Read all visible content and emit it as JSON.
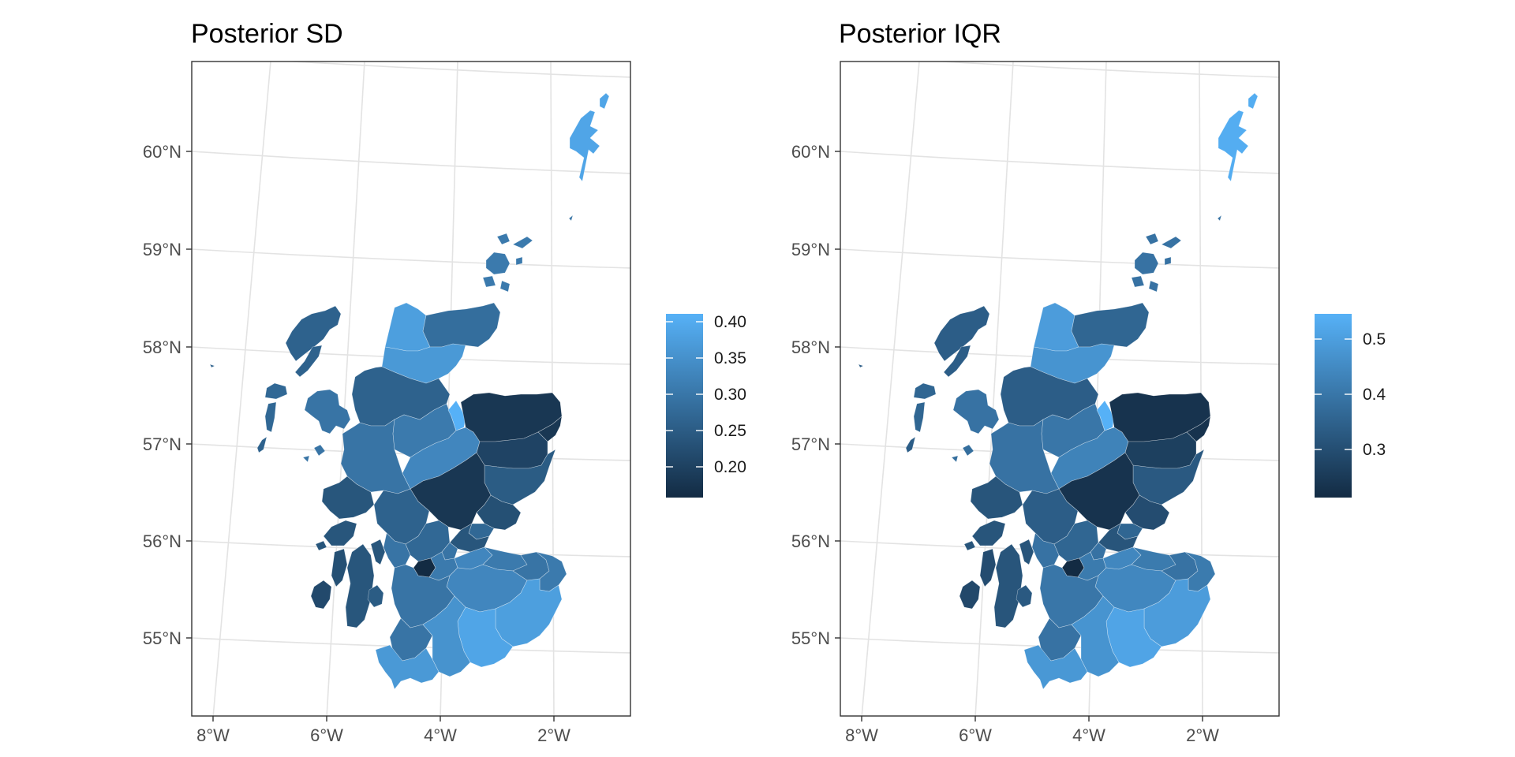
{
  "maps": [
    {
      "title": "Posterior SD",
      "x_ticks": [
        "8°W",
        "6°W",
        "4°W",
        "2°W"
      ],
      "y_ticks": [
        "60°N",
        "59°N",
        "58°N",
        "57°N",
        "56°N",
        "55°N"
      ],
      "legend": {
        "labels": [
          "0.40",
          "0.35",
          "0.30",
          "0.25",
          "0.20"
        ],
        "color_low": "#132B43",
        "color_high": "#56B1F7"
      },
      "region_values": {
        "shetland": 0.38,
        "fair_isle": 0.3,
        "orkney": 0.31,
        "lewis_harris": 0.27,
        "uists": 0.28,
        "barra": 0.27,
        "skye": 0.3,
        "small_isles": 0.3,
        "sutherland_west": 0.37,
        "caithness": 0.29,
        "easter_ross": 0.36,
        "wester_ross": 0.27,
        "lochaber": 0.3,
        "inverness": 0.31,
        "nairn_moray": 0.33,
        "moray_strip": 0.4,
        "aberdeenshire_north": 0.2,
        "aberdeenshire_central": 0.22,
        "aberdeen": 0.2,
        "kincardine": 0.26,
        "perthshire": 0.2,
        "angus": 0.24,
        "dundee": 0.28,
        "fife": 0.25,
        "argyll_west": 0.25,
        "argyll": 0.27,
        "mull": 0.25,
        "islay": 0.23,
        "jura": 0.24,
        "kintyre": 0.25,
        "arran": 0.26,
        "stirling": 0.28,
        "trossachs": 0.3,
        "glasgow": 0.18,
        "lanark_north": 0.31,
        "lanark": 0.33,
        "edinburgh": 0.31,
        "lothian": 0.3,
        "borders_east": 0.31,
        "borders_south": 0.37,
        "dumfries_west": 0.35,
        "dumfries_east": 0.38,
        "galloway": 0.36,
        "ayrshire": 0.3,
        "carrick": 0.3,
        "west_lothian": 0.33,
        "clackmannan": 0.3
      }
    },
    {
      "title": "Posterior IQR",
      "x_ticks": [
        "8°W",
        "6°W",
        "4°W",
        "2°W"
      ],
      "y_ticks": [
        "60°N",
        "59°N",
        "58°N",
        "57°N",
        "56°N",
        "55°N"
      ],
      "legend": {
        "labels": [
          "0.5",
          "0.4",
          "0.3"
        ],
        "color_low": "#132B43",
        "color_high": "#56B1F7"
      },
      "region_values": {
        "shetland": 0.52,
        "fair_isle": 0.38,
        "orkney": 0.38,
        "lewis_harris": 0.33,
        "uists": 0.35,
        "barra": 0.33,
        "skye": 0.38,
        "small_isles": 0.37,
        "sutherland_west": 0.48,
        "caithness": 0.35,
        "easter_ross": 0.46,
        "wester_ross": 0.33,
        "lochaber": 0.38,
        "inverness": 0.39,
        "nairn_moray": 0.42,
        "moray_strip": 0.53,
        "aberdeenshire_north": 0.23,
        "aberdeenshire_central": 0.26,
        "aberdeen": 0.23,
        "kincardine": 0.32,
        "perthshire": 0.23,
        "angus": 0.29,
        "dundee": 0.35,
        "fife": 0.31,
        "argyll_west": 0.31,
        "argyll": 0.33,
        "mull": 0.31,
        "islay": 0.28,
        "jura": 0.29,
        "kintyre": 0.31,
        "arran": 0.32,
        "stirling": 0.35,
        "trossachs": 0.38,
        "glasgow": 0.21,
        "lanark_north": 0.4,
        "lanark": 0.43,
        "edinburgh": 0.4,
        "lothian": 0.38,
        "borders_east": 0.4,
        "borders_south": 0.48,
        "dumfries_west": 0.46,
        "dumfries_east": 0.5,
        "galloway": 0.47,
        "ayrshire": 0.39,
        "carrick": 0.38,
        "west_lothian": 0.43,
        "clackmannan": 0.38
      }
    }
  ]
}
